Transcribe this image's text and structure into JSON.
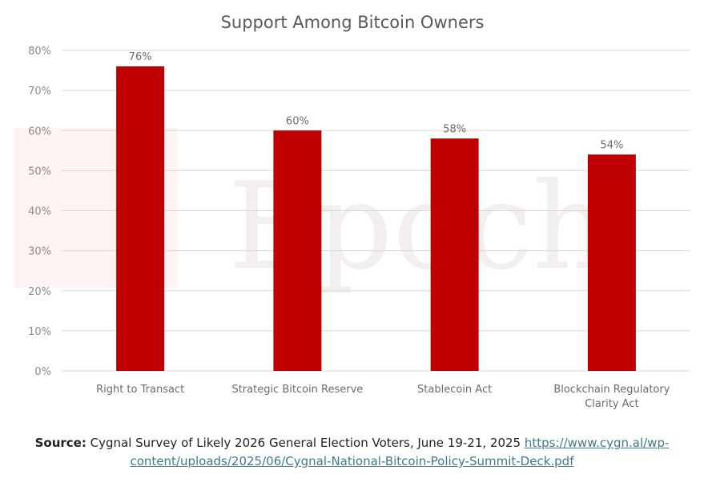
{
  "chart_data": {
    "type": "bar",
    "title": "Support Among Bitcoin Owners",
    "categories": [
      "Right to Transact",
      "Strategic Bitcoin Reserve",
      "Stablecoin Act",
      "Blockchain Regulatory Clarity Act"
    ],
    "values": [
      76,
      60,
      58,
      54
    ],
    "data_labels": [
      "76%",
      "60%",
      "58%",
      "54%"
    ],
    "xlabel": "",
    "ylabel": "",
    "ylim": [
      0,
      80
    ],
    "yticks": [
      "0%",
      "10%",
      "20%",
      "30%",
      "40%",
      "50%",
      "60%",
      "70%",
      "80%"
    ],
    "grid": true,
    "bar_color": "#c00000"
  },
  "watermark": "Epoch",
  "source": {
    "label": "Source:",
    "text": "Cygnal Survey of Likely 2026 General Election Voters, June 19-21, 2025",
    "link": "https://www.cygn.al/wp-content/uploads/2025/06/Cygnal-National-Bitcoin-Policy-Summit-Deck.pdf"
  }
}
